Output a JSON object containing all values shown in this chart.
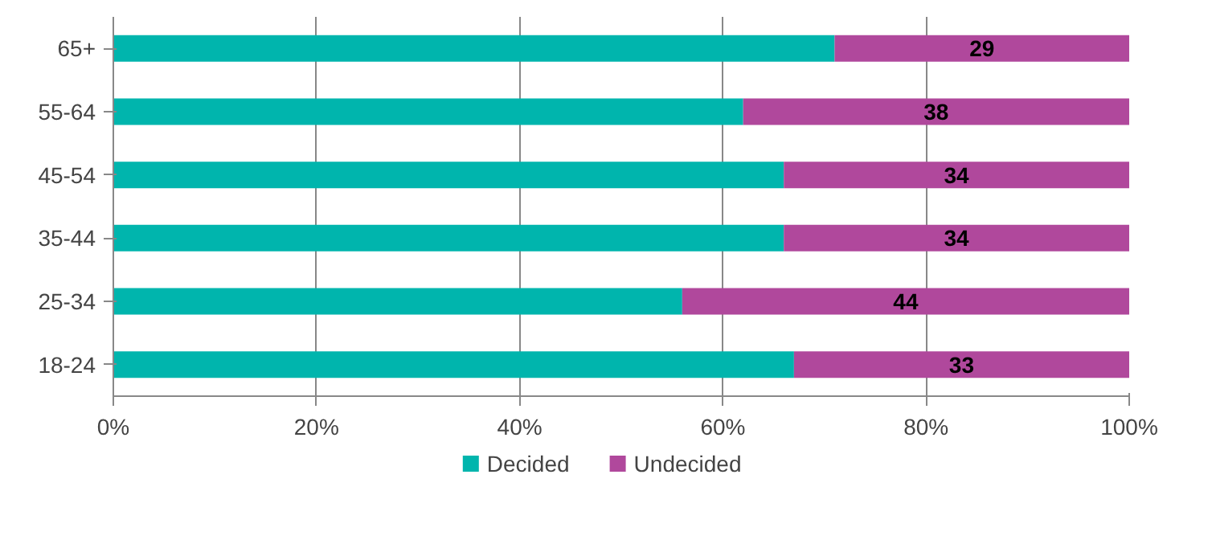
{
  "chart_data": {
    "type": "bar",
    "orientation": "horizontal",
    "stacked": true,
    "categories": [
      "65+",
      "55-64",
      "45-54",
      "35-44",
      "25-34",
      "18-24"
    ],
    "series": [
      {
        "name": "Decided",
        "color": "#00b5ad",
        "values": [
          71,
          62,
          66,
          66,
          56,
          67
        ]
      },
      {
        "name": "Undecided",
        "color": "#b0489c",
        "values": [
          29,
          38,
          34,
          34,
          44,
          33
        ],
        "value_labels": [
          "29",
          "38",
          "34",
          "34",
          "44",
          "33"
        ]
      }
    ],
    "xlim": [
      0,
      100
    ],
    "xticks": [
      {
        "value": 0,
        "label": "0%"
      },
      {
        "value": 20,
        "label": "20%"
      },
      {
        "value": 40,
        "label": "40%"
      },
      {
        "value": 60,
        "label": "60%"
      },
      {
        "value": 80,
        "label": "80%"
      },
      {
        "value": 100,
        "label": "100%"
      }
    ],
    "grid": "x",
    "legend": "bottom"
  }
}
